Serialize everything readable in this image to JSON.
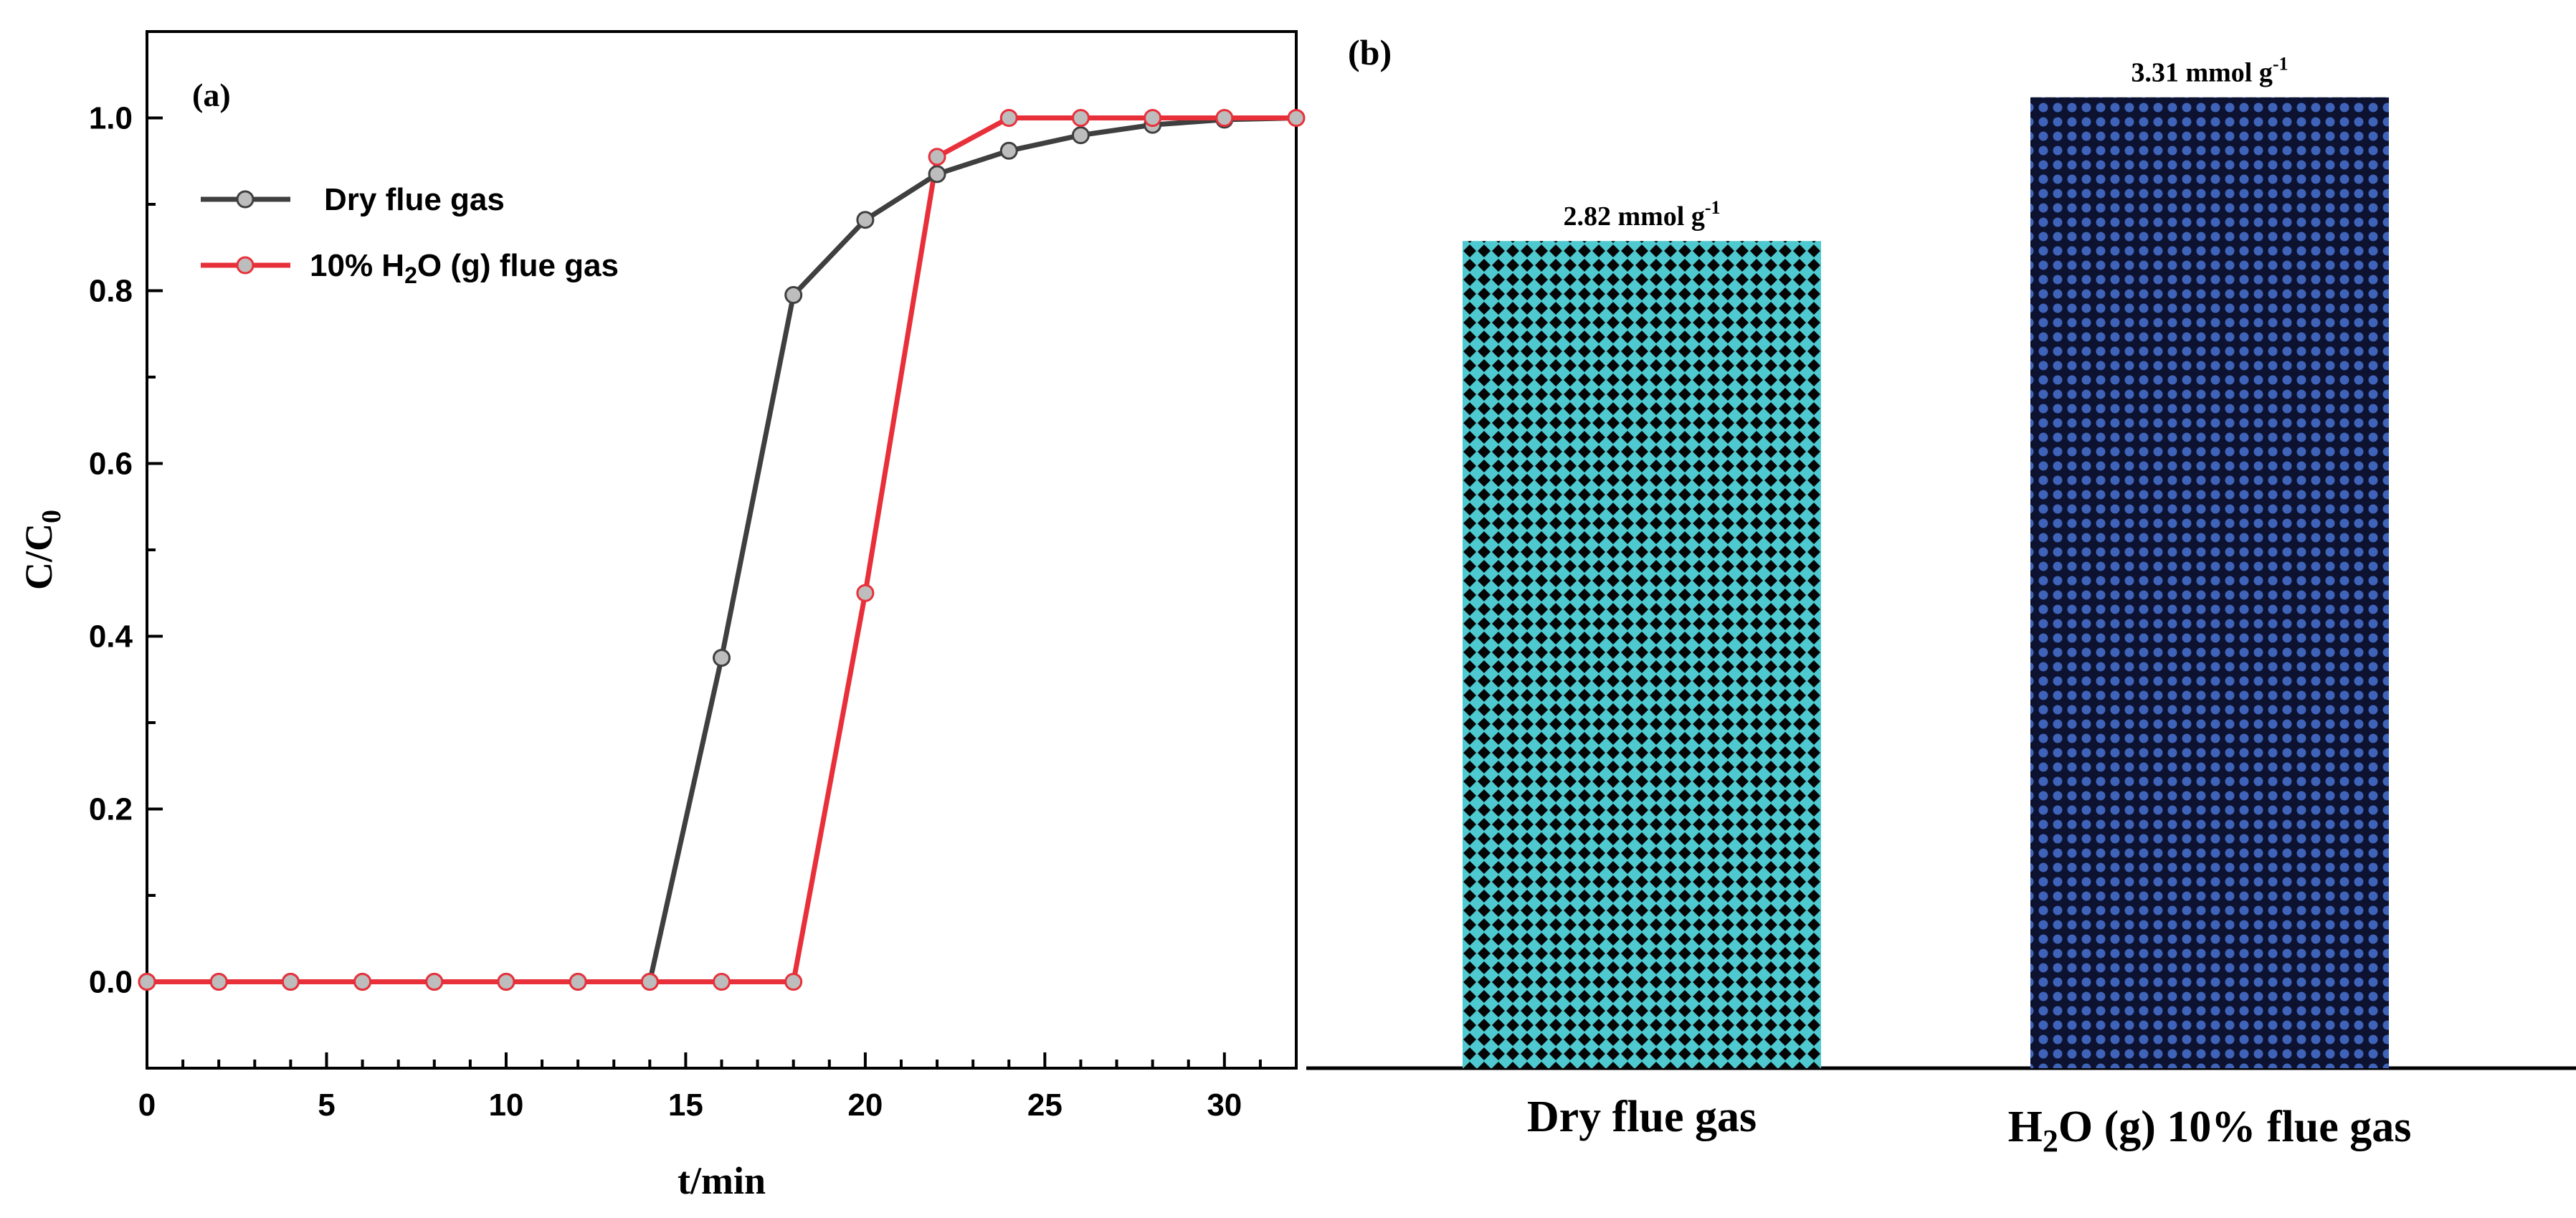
{
  "chart_data": [
    {
      "panel": "(a)",
      "type": "line",
      "xlabel": "t/min",
      "ylabel": "C/C",
      "ylabel_sub": "0",
      "xlim": [
        0,
        32
      ],
      "ylim": [
        -0.1,
        1.1
      ],
      "xticks": [
        0,
        5,
        10,
        15,
        20,
        25,
        30
      ],
      "xtick_labels": [
        "0",
        "5",
        "10",
        "15",
        "20",
        "25",
        "30"
      ],
      "yticks": [
        0.0,
        0.2,
        0.4,
        0.6,
        0.8,
        1.0
      ],
      "ytick_labels": [
        "0.0",
        "0.2",
        "0.4",
        "0.6",
        "0.8",
        "1.0"
      ],
      "legend_position": "top-left",
      "series": [
        {
          "name": "Dry flue gas",
          "color": "#3f3f3f",
          "x": [
            0,
            2,
            4,
            6,
            8,
            10,
            12,
            14,
            16,
            18,
            20,
            22,
            24,
            26,
            28,
            30,
            32
          ],
          "y": [
            0,
            0,
            0,
            0,
            0,
            0,
            0,
            0,
            0.375,
            0.795,
            0.882,
            0.935,
            0.962,
            0.98,
            0.992,
            0.998,
            1.0
          ]
        },
        {
          "name": "10%  H2O (g) flue gas",
          "legend_parts": [
            "10%  H",
            "2",
            "O (g) flue gas"
          ],
          "color": "#e8303a",
          "x": [
            0,
            2,
            4,
            6,
            8,
            10,
            12,
            14,
            16,
            18,
            20,
            22,
            24,
            26,
            28,
            30,
            32
          ],
          "y": [
            0,
            0,
            0,
            0,
            0,
            0,
            0,
            0,
            0,
            0,
            0.45,
            0.955,
            1.0,
            1.0,
            1.0,
            1.0,
            1.0
          ]
        }
      ]
    },
    {
      "panel": "(b)",
      "type": "bar",
      "ylim": [
        0,
        3.5
      ],
      "categories": [
        "Dry flue gas",
        "H2O (g) 10% flue gas"
      ],
      "category_parts": [
        [
          "Dry flue gas"
        ],
        [
          "H",
          "2",
          "O (g) 10% flue gas"
        ]
      ],
      "values": [
        2.82,
        3.31
      ],
      "labels": [
        "2.82 mmol g",
        "3.31 mmol g"
      ],
      "label_sup": "-1",
      "colors": [
        "#4ec9d0",
        "#3f63b8"
      ]
    }
  ]
}
